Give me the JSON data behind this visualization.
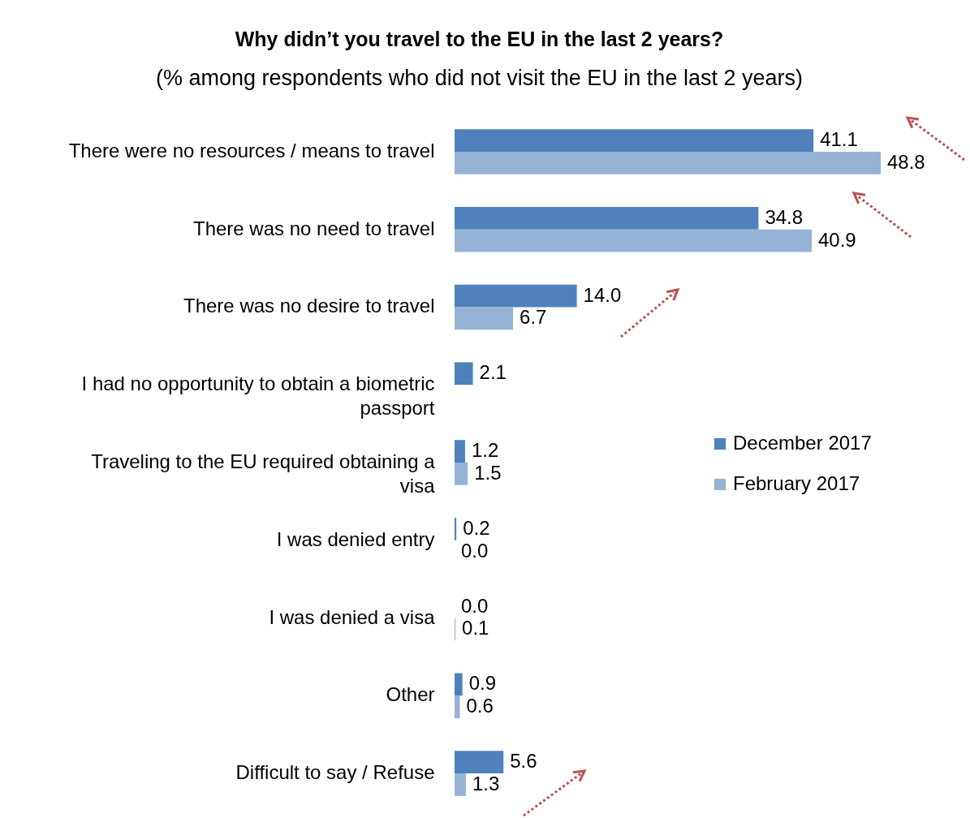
{
  "chart_data": {
    "type": "bar",
    "orientation": "horizontal",
    "title": "Why didn’t you travel to the EU in the last 2 years?",
    "subtitle": "(% among respondents who did not visit the EU in the last 2 years)",
    "categories": [
      "There were no resources / means to travel",
      "There was no need to travel",
      "There was no desire to travel",
      "I had no opportunity to obtain a biometric passport",
      "Traveling to the EU required obtaining a visa",
      "I was denied entry",
      "I was denied a visa",
      "Other",
      "Difficult to say / Refuse"
    ],
    "series": [
      {
        "name": "December 2017",
        "color": "#4f81bd",
        "values": [
          41.1,
          34.8,
          14.0,
          2.1,
          1.2,
          0.2,
          0.0,
          0.9,
          5.6
        ],
        "value_labels": [
          "41.1",
          "34.8",
          "14.0",
          "2.1",
          "1.2",
          "0.2",
          "0.0",
          "0.9",
          "5.6"
        ]
      },
      {
        "name": "February 2017",
        "color": "#95b3d7",
        "values": [
          48.8,
          40.9,
          6.7,
          null,
          1.5,
          0.0,
          0.1,
          0.6,
          1.3
        ],
        "value_labels": [
          "48.8",
          "40.9",
          "6.7",
          null,
          "1.5",
          "0.0",
          "0.1",
          "0.6",
          "1.3"
        ]
      }
    ],
    "legend": "right"
  }
}
